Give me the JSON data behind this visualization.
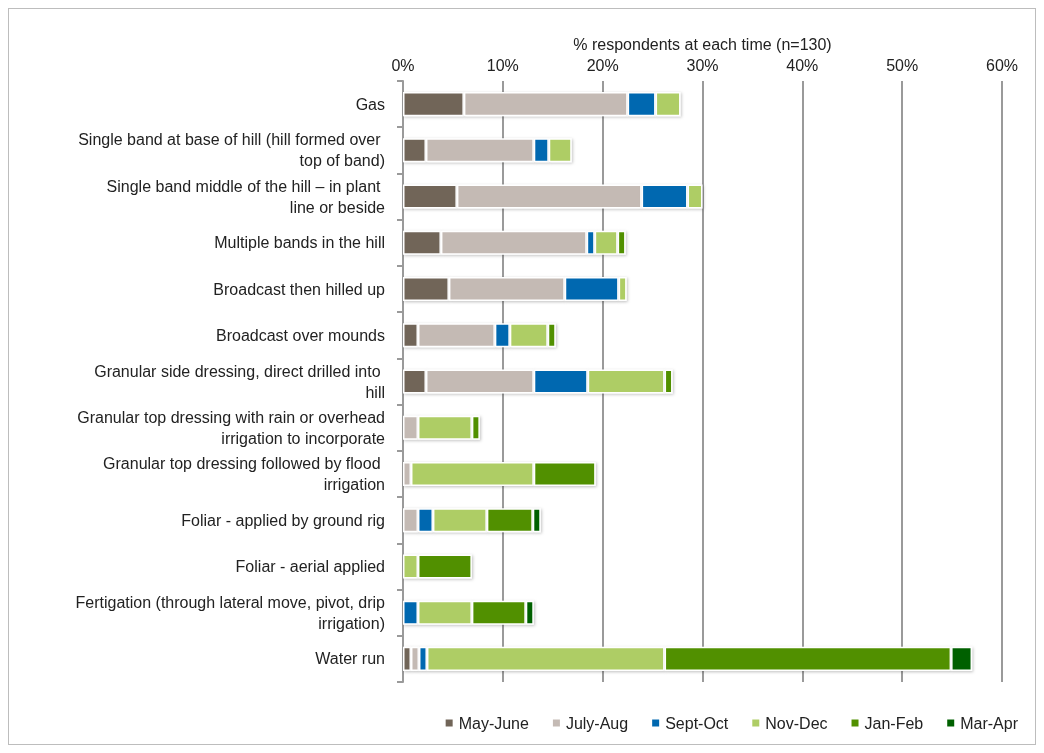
{
  "chart_data": {
    "type": "bar",
    "orientation": "horizontal",
    "stacked": true,
    "xlabel": "% respondents at each time (n=130)",
    "categories": [
      "Gas",
      "Single band at base of hill (hill formed over top of band)",
      "Single band middle of the hill – in plant line or beside",
      "Multiple bands in the hill",
      "Broadcast then hilled up",
      "Broadcast over mounds",
      "Granular side dressing, direct drilled into hill",
      "Granular top dressing with rain or overhead irrigation to incorporate",
      "Granular top dressing followed by flood irrigation",
      "Foliar - applied by ground rig",
      "Foliar - aerial applied",
      "Fertigation (through lateral move, pivot, drip irrigation)",
      "Water run"
    ],
    "series": [
      {
        "name": "May-June",
        "color": "#716558",
        "values": [
          6.1,
          2.3,
          5.4,
          3.8,
          4.6,
          1.5,
          2.3,
          null,
          null,
          null,
          null,
          null,
          0.8
        ]
      },
      {
        "name": "July-Aug",
        "color": "#c4bab4",
        "values": [
          16.4,
          10.8,
          18.5,
          14.6,
          11.6,
          7.7,
          10.8,
          1.5,
          0.8,
          1.5,
          null,
          null,
          0.8
        ]
      },
      {
        "name": "Sept-Oct",
        "color": "#0068b0",
        "values": [
          2.8,
          1.5,
          4.6,
          0.8,
          5.4,
          1.5,
          5.4,
          null,
          null,
          1.5,
          null,
          1.5,
          0.8
        ]
      },
      {
        "name": "Nov-Dec",
        "color": "#aecd65",
        "values": [
          2.5,
          2.3,
          1.5,
          2.3,
          0.8,
          3.8,
          7.7,
          5.4,
          12.3,
          5.4,
          1.5,
          5.4,
          23.8
        ]
      },
      {
        "name": "Jan-Feb",
        "color": "#519000",
        "values": [
          null,
          null,
          null,
          0.8,
          null,
          0.8,
          0.8,
          0.8,
          6.2,
          4.6,
          5.4,
          5.4,
          28.7
        ]
      },
      {
        "name": "Mar-Apr",
        "color": "#006000",
        "values": [
          null,
          null,
          null,
          null,
          null,
          null,
          null,
          null,
          null,
          0.8,
          null,
          0.8,
          2.1
        ]
      }
    ],
    "xlim": [
      0,
      60
    ],
    "xticks": [
      {
        "value": 0,
        "label": "0%"
      },
      {
        "value": 10,
        "label": "10%"
      },
      {
        "value": 20,
        "label": "20%"
      },
      {
        "value": 30,
        "label": "30%"
      },
      {
        "value": 40,
        "label": "40%"
      },
      {
        "value": 50,
        "label": "50%"
      },
      {
        "value": 60,
        "label": "60%"
      }
    ],
    "grid": "x",
    "legend": "bottom right"
  }
}
